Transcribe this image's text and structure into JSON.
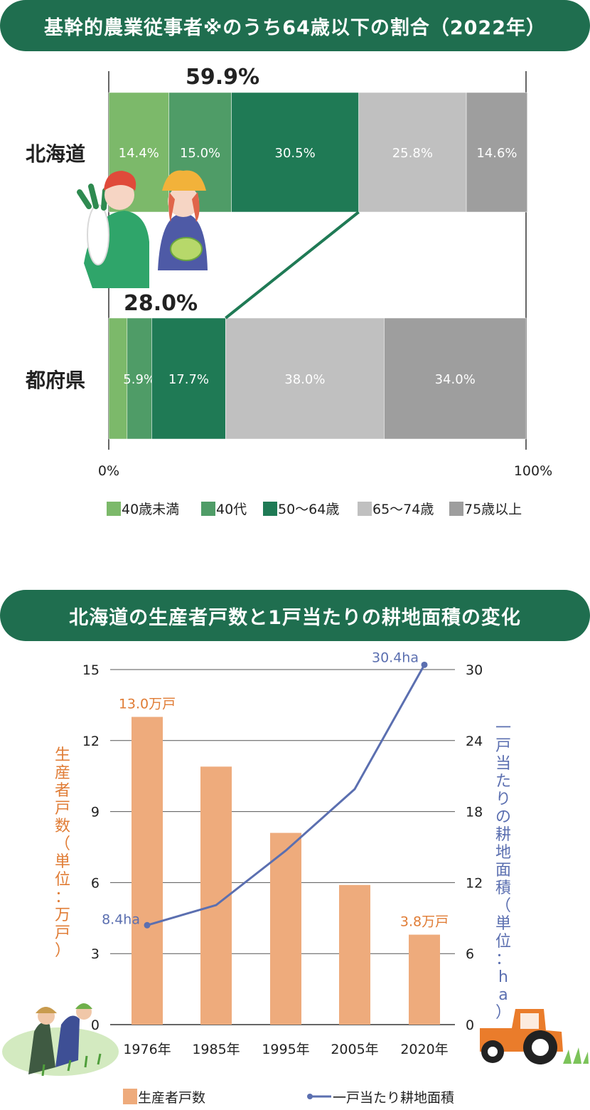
{
  "chart1": {
    "title": "基幹的農業従事者※のうち64歳以下の割合（2022年）",
    "chart_data": {
      "type": "bar",
      "stacked": true,
      "orientation": "horizontal",
      "categories": [
        "北海道",
        "都府県"
      ],
      "series": [
        {
          "name": "40歳未満",
          "values": [
            14.4,
            4.4
          ],
          "labels": [
            "14.4%",
            "4.4%"
          ],
          "color": "#7cb96a"
        },
        {
          "name": "40代",
          "values": [
            15.0,
            5.9
          ],
          "labels": [
            "15.0%",
            "5.9%"
          ],
          "color": "#4f9c67"
        },
        {
          "name": "50～64歳",
          "values": [
            30.5,
            17.7
          ],
          "labels": [
            "30.5%",
            "17.7%"
          ],
          "color": "#1f7a55"
        },
        {
          "name": "65～74歳",
          "values": [
            25.8,
            38.0
          ],
          "labels": [
            "25.8%",
            "38.0%"
          ],
          "color": "#c0c0c0"
        },
        {
          "name": "75歳以上",
          "values": [
            14.6,
            34.0
          ],
          "labels": [
            "14.6%",
            "34.0%"
          ],
          "color": "#9e9e9e"
        }
      ],
      "totals_64_and_under": [
        "59.9%",
        "28.0%"
      ],
      "xlim": [
        0,
        100
      ],
      "x_tick_labels": [
        "0%",
        "100%"
      ],
      "legend": "bottom"
    }
  },
  "chart2": {
    "title": "北海道の生産者戸数と1戸当たりの耕地面積の変化",
    "chart_data": {
      "type": "bar",
      "categories": [
        "1976年",
        "1985年",
        "1995年",
        "2005年",
        "2020年"
      ],
      "series": [
        {
          "name": "生産者戸数",
          "type": "bar",
          "axis": "left",
          "values": [
            13.0,
            10.9,
            8.1,
            5.9,
            3.8
          ],
          "color": "#eeab7c"
        },
        {
          "name": "一戸当たり耕地面積",
          "type": "line",
          "axis": "right",
          "values": [
            8.4,
            10.1,
            14.7,
            19.9,
            30.4
          ],
          "color": "#5b6fb0"
        }
      ],
      "annotations": {
        "bar_first": "13.0万戸",
        "bar_last": "3.8万戸",
        "line_first": "8.4ha",
        "line_last": "30.4ha"
      },
      "ylabel_left": "生産者戸数（単位：万戸）",
      "ylabel_right": "一戸当たりの耕地面積（単位：ha）",
      "ylim_left": [
        0,
        15
      ],
      "ylim_right": [
        0,
        30
      ],
      "yticks_left": [
        0,
        3,
        6,
        9,
        12,
        15
      ],
      "yticks_right": [
        0,
        6,
        12,
        18,
        24,
        30
      ],
      "grid": true,
      "legend": "bottom",
      "legend_labels": [
        "生産者戸数",
        "一戸当たり耕地面積"
      ]
    }
  }
}
